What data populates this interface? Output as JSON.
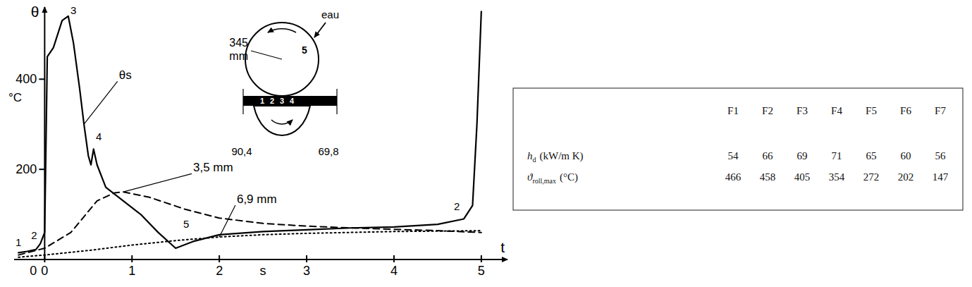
{
  "chart_data": {
    "type": "line",
    "y_label": "θ",
    "y_unit": "°C",
    "x_label": "t",
    "x_unit": "s",
    "xlim": [
      -0.35,
      5.3
    ],
    "xticks": [
      0,
      1,
      2,
      3,
      4,
      5
    ],
    "ylim": [
      0,
      560
    ],
    "yticks": [
      0,
      200,
      400
    ],
    "grid": false,
    "annotations": [
      "1",
      "2",
      "3",
      "4",
      "5",
      "2"
    ],
    "series": [
      {
        "name": "θs",
        "color": "#000000",
        "line_style": "solid",
        "x": [
          -0.3,
          -0.2,
          -0.1,
          -0.05,
          0,
          0.03,
          0.1,
          0.2,
          0.27,
          0.33,
          0.4,
          0.45,
          0.5,
          0.53,
          0.56,
          0.6,
          0.7,
          0.9,
          1.1,
          1.3,
          1.5,
          1.7,
          2,
          2.5,
          3,
          3.5,
          4,
          4.5,
          4.8,
          4.9,
          4.95,
          5
        ],
        "values": [
          15,
          18,
          22,
          35,
          60,
          450,
          470,
          530,
          540,
          480,
          380,
          300,
          230,
          210,
          245,
          210,
          160,
          130,
          100,
          60,
          25,
          40,
          55,
          62,
          66,
          70,
          72,
          78,
          90,
          120,
          300,
          550
        ]
      },
      {
        "name": "3,5 mm",
        "color": "#000000",
        "line_style": "dashed",
        "x": [
          -0.3,
          0,
          0.3,
          0.6,
          0.8,
          0.9,
          1.2,
          1.6,
          2,
          2.5,
          3,
          3.5,
          4,
          4.5,
          5
        ],
        "values": [
          10,
          25,
          60,
          130,
          148,
          150,
          138,
          112,
          92,
          80,
          74,
          70,
          67,
          64,
          60
        ]
      },
      {
        "name": "6,9 mm",
        "color": "#000000",
        "line_style": "dotted",
        "x": [
          -0.3,
          0,
          0.5,
          1,
          1.5,
          2,
          2.5,
          3,
          3.5,
          4,
          4.5,
          5
        ],
        "values": [
          5,
          10,
          20,
          32,
          42,
          50,
          55,
          58,
          60,
          62,
          63,
          64
        ]
      }
    ]
  },
  "diagram": {
    "radius": "345 mm",
    "water": "eau",
    "points": [
      "1",
      "2",
      "3",
      "4",
      "5"
    ],
    "left": "90,4",
    "right": "69,8"
  },
  "table": {
    "columns": [
      "F1",
      "F2",
      "F3",
      "F4",
      "F5",
      "F6",
      "F7"
    ],
    "rows": [
      {
        "symbol": "h",
        "sub": "d",
        "unit": "(kW/m K)",
        "values": [
          54,
          66,
          69,
          71,
          65,
          60,
          56
        ]
      },
      {
        "symbol": "ϑ",
        "sub": "roll,max",
        "unit": "(°C)",
        "values": [
          466,
          458,
          405,
          354,
          272,
          202,
          147
        ]
      }
    ]
  }
}
